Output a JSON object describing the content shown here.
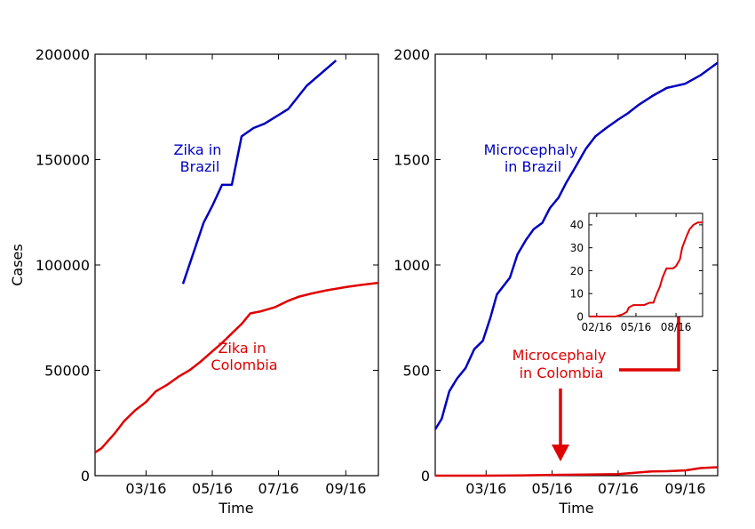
{
  "colors": {
    "brazil": "#0000c0",
    "colombia": "#e00000",
    "axis": "#000000",
    "background": "#ffffff"
  },
  "chart_data": [
    {
      "type": "line",
      "xlabel": "Time",
      "ylabel": "Cases",
      "xticks": [
        "03/16",
        "05/16",
        "07/16",
        "09/16"
      ],
      "yticks": [
        "0",
        "50000",
        "100000",
        "150000",
        "200000"
      ],
      "ylim": [
        0,
        200000
      ],
      "xlim": [
        "2016-01-14",
        "2016-10-01"
      ],
      "grid": false,
      "annotations": [
        {
          "id": "zika-brazil",
          "lines": [
            "Zika in",
            "Brazil"
          ],
          "color": "brazil"
        },
        {
          "id": "zika-colombia",
          "lines": [
            "Zika in",
            "Colombia"
          ],
          "color": "colombia"
        }
      ],
      "series": [
        {
          "color": "brazil",
          "x": [
            "2016-04-04",
            "2016-04-23",
            "2016-05-01",
            "2016-05-10",
            "2016-05-19",
            "2016-05-28",
            "2016-06-08",
            "2016-06-18",
            "2016-07-10",
            "2016-07-27",
            "2016-08-23"
          ],
          "y": [
            91000,
            120000,
            128000,
            138000,
            138000,
            161000,
            165000,
            167000,
            174000,
            185000,
            197000
          ]
        },
        {
          "color": "colombia",
          "x": [
            "2016-01-14",
            "2016-01-20",
            "2016-02-01",
            "2016-02-10",
            "2016-02-20",
            "2016-03-01",
            "2016-03-10",
            "2016-03-20",
            "2016-03-31",
            "2016-04-10",
            "2016-04-20",
            "2016-05-01",
            "2016-05-10",
            "2016-05-20",
            "2016-05-28",
            "2016-06-05",
            "2016-06-15",
            "2016-06-28",
            "2016-07-10",
            "2016-07-20",
            "2016-08-01",
            "2016-08-15",
            "2016-09-01",
            "2016-09-15",
            "2016-10-01"
          ],
          "y": [
            11000,
            13000,
            20000,
            26000,
            31000,
            35000,
            40000,
            43000,
            47000,
            50000,
            54000,
            59000,
            63000,
            68000,
            72000,
            77000,
            78000,
            80000,
            83000,
            85000,
            86500,
            88000,
            89500,
            90500,
            91500
          ]
        }
      ]
    },
    {
      "type": "line",
      "xlabel": "Time",
      "ylabel": "",
      "xticks": [
        "03/16",
        "05/16",
        "07/16",
        "09/16"
      ],
      "yticks": [
        "0",
        "500",
        "1000",
        "1500",
        "2000"
      ],
      "ylim": [
        0,
        2000
      ],
      "xlim": [
        "2016-01-14",
        "2016-10-01"
      ],
      "grid": false,
      "annotations": [
        {
          "id": "micro-brazil",
          "lines": [
            "Microcephaly",
            "in Brazil"
          ],
          "color": "brazil"
        },
        {
          "id": "micro-colombia",
          "lines": [
            "Microcephaly",
            "in Colombia"
          ],
          "color": "colombia"
        }
      ],
      "series": [
        {
          "color": "brazil",
          "x": [
            "2016-01-14",
            "2016-01-20",
            "2016-01-27",
            "2016-02-03",
            "2016-02-11",
            "2016-02-19",
            "2016-02-27",
            "2016-03-05",
            "2016-03-11",
            "2016-03-17",
            "2016-03-23",
            "2016-03-30",
            "2016-04-07",
            "2016-04-14",
            "2016-04-22",
            "2016-04-29",
            "2016-05-07",
            "2016-05-14",
            "2016-05-22",
            "2016-06-01",
            "2016-06-10",
            "2016-06-20",
            "2016-07-01",
            "2016-07-10",
            "2016-07-20",
            "2016-08-01",
            "2016-08-15",
            "2016-09-01",
            "2016-09-15",
            "2016-10-01"
          ],
          "y": [
            220,
            270,
            400,
            460,
            510,
            600,
            640,
            750,
            860,
            900,
            940,
            1050,
            1120,
            1170,
            1200,
            1270,
            1320,
            1390,
            1460,
            1550,
            1610,
            1650,
            1690,
            1720,
            1760,
            1800,
            1840,
            1860,
            1900,
            1960
          ]
        },
        {
          "color": "colombia",
          "x": [
            "2016-01-14",
            "2016-02-01",
            "2016-03-01",
            "2016-04-01",
            "2016-05-01",
            "2016-06-01",
            "2016-07-01",
            "2016-07-15",
            "2016-08-01",
            "2016-08-15",
            "2016-09-01",
            "2016-09-15",
            "2016-10-01"
          ],
          "y": [
            0,
            0,
            0,
            1,
            4,
            5,
            7,
            13,
            20,
            21,
            25,
            36,
            40
          ]
        }
      ],
      "inset": {
        "xticks": [
          "02/16",
          "05/16",
          "08/16"
        ],
        "yticks": [
          "0",
          "10",
          "20",
          "30",
          "40"
        ],
        "ylim": [
          0,
          45
        ],
        "xlim": [
          "2016-01-14",
          "2016-10-01"
        ],
        "series": [
          {
            "color": "colombia",
            "x": [
              "2016-01-14",
              "2016-02-15",
              "2016-03-15",
              "2016-04-01",
              "2016-04-10",
              "2016-04-15",
              "2016-04-25",
              "2016-05-05",
              "2016-05-20",
              "2016-06-01",
              "2016-06-10",
              "2016-06-18",
              "2016-06-25",
              "2016-07-01",
              "2016-07-10",
              "2016-07-15",
              "2016-07-25",
              "2016-08-01",
              "2016-08-10",
              "2016-08-15",
              "2016-08-25",
              "2016-09-01",
              "2016-09-10",
              "2016-09-20",
              "2016-10-01"
            ],
            "y": [
              0,
              0,
              0,
              1,
              2,
              4,
              5,
              5,
              5,
              6,
              6,
              10,
              13,
              17,
              21,
              21,
              21,
              22,
              25,
              30,
              35,
              38,
              40,
              41,
              41
            ]
          }
        ]
      }
    }
  ]
}
